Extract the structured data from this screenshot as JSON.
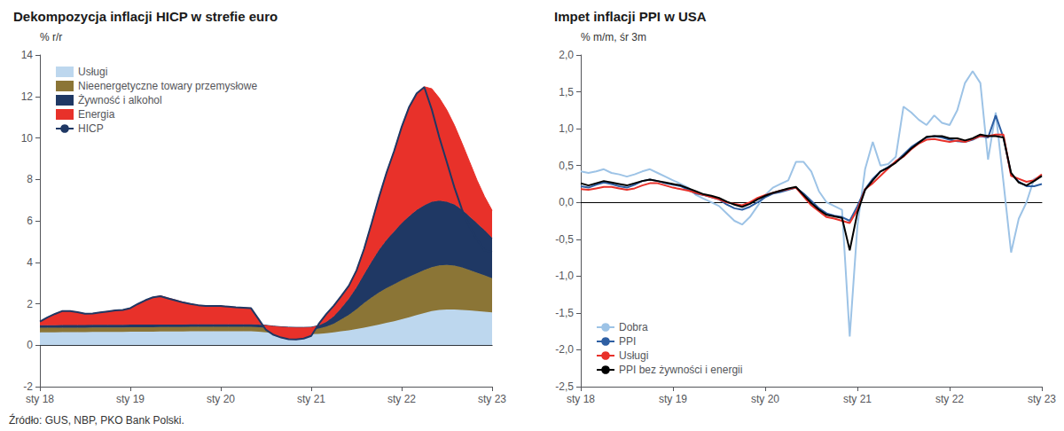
{
  "chart_data": [
    {
      "type": "area",
      "title": "Dekompozycja inflacji HICP w strefie euro",
      "ylabel": "% r/r",
      "categories": [
        "sty 18",
        null,
        null,
        null,
        null,
        null,
        null,
        null,
        null,
        null,
        null,
        null,
        "sty 19",
        null,
        null,
        null,
        null,
        null,
        null,
        null,
        null,
        null,
        null,
        null,
        "sty 20",
        null,
        null,
        null,
        null,
        null,
        null,
        null,
        null,
        null,
        null,
        null,
        "sty 21",
        null,
        null,
        null,
        null,
        null,
        null,
        null,
        null,
        null,
        null,
        null,
        "sty 22",
        null,
        null,
        null,
        null,
        null,
        null,
        null,
        null,
        null,
        null,
        null,
        "sty 23"
      ],
      "ylim": [
        -2,
        14
      ],
      "yticks": [
        -2,
        0,
        2,
        4,
        6,
        8,
        10,
        12,
        14
      ],
      "grid": false,
      "legend": "upper left",
      "stacked": true,
      "series": [
        {
          "name": "Usługi",
          "type": "area",
          "color": "#BDD7EE",
          "values": [
            0.62,
            0.62,
            0.62,
            0.63,
            0.63,
            0.63,
            0.63,
            0.64,
            0.64,
            0.64,
            0.64,
            0.64,
            0.65,
            0.65,
            0.65,
            0.65,
            0.66,
            0.66,
            0.66,
            0.66,
            0.67,
            0.67,
            0.67,
            0.67,
            0.67,
            0.67,
            0.67,
            0.67,
            0.67,
            0.65,
            0.62,
            0.58,
            0.55,
            0.53,
            0.52,
            0.52,
            0.53,
            0.55,
            0.58,
            0.62,
            0.67,
            0.72,
            0.78,
            0.85,
            0.92,
            1.0,
            1.08,
            1.16,
            1.25,
            1.35,
            1.45,
            1.55,
            1.65,
            1.7,
            1.72,
            1.72,
            1.7,
            1.68,
            1.65,
            1.62,
            1.58
          ]
        },
        {
          "name": "Nieenergetyczne towary przemysłowe",
          "type": "area",
          "color": "#8B7536",
          "values": [
            0.22,
            0.22,
            0.22,
            0.22,
            0.22,
            0.22,
            0.22,
            0.22,
            0.22,
            0.22,
            0.22,
            0.22,
            0.22,
            0.22,
            0.22,
            0.22,
            0.22,
            0.22,
            0.22,
            0.22,
            0.22,
            0.22,
            0.22,
            0.22,
            0.22,
            0.22,
            0.22,
            0.22,
            0.22,
            0.22,
            0.22,
            0.22,
            0.22,
            0.22,
            0.22,
            0.22,
            0.22,
            0.25,
            0.32,
            0.42,
            0.58,
            0.75,
            0.95,
            1.18,
            1.38,
            1.55,
            1.68,
            1.78,
            1.88,
            1.95,
            2.02,
            2.08,
            2.12,
            2.15,
            2.15,
            2.12,
            2.05,
            1.95,
            1.85,
            1.75,
            1.65
          ]
        },
        {
          "name": "Żywność i alkohol",
          "type": "area",
          "color": "#1F3864",
          "values": [
            0.12,
            0.12,
            0.12,
            0.12,
            0.12,
            0.12,
            0.12,
            0.12,
            0.12,
            0.12,
            0.12,
            0.12,
            0.12,
            0.12,
            0.12,
            0.12,
            0.12,
            0.12,
            0.12,
            0.12,
            0.12,
            0.12,
            0.12,
            0.12,
            0.12,
            0.12,
            0.12,
            0.12,
            0.12,
            0.12,
            0.12,
            0.12,
            0.12,
            0.12,
            0.12,
            0.12,
            0.12,
            0.15,
            0.22,
            0.35,
            0.55,
            0.78,
            1.05,
            1.38,
            1.72,
            2.05,
            2.32,
            2.55,
            2.75,
            2.92,
            3.05,
            3.12,
            3.15,
            3.12,
            3.05,
            2.95,
            2.78,
            2.58,
            2.38,
            2.18,
            1.95
          ]
        },
        {
          "name": "Energia",
          "type": "area",
          "color": "#E8312A",
          "values": [
            0.18,
            0.38,
            0.55,
            0.68,
            0.68,
            0.62,
            0.55,
            0.55,
            0.6,
            0.65,
            0.7,
            0.72,
            0.8,
            1.0,
            1.18,
            1.32,
            1.38,
            1.28,
            1.18,
            1.08,
            0.98,
            0.92,
            0.88,
            0.88,
            0.88,
            0.85,
            0.82,
            0.8,
            0.78,
            0.28,
            -0.22,
            -0.42,
            -0.52,
            -0.58,
            -0.58,
            -0.52,
            -0.42,
            0.08,
            0.38,
            0.52,
            0.58,
            0.62,
            0.82,
            1.22,
            1.85,
            2.55,
            3.25,
            3.88,
            4.65,
            5.28,
            5.62,
            5.72,
            5.45,
            4.95,
            4.42,
            3.82,
            3.22,
            2.65,
            2.08,
            1.62,
            1.32
          ]
        },
        {
          "name": "HICP",
          "type": "line",
          "color": "#1F3864",
          "values": [
            1.14,
            1.34,
            1.51,
            1.65,
            1.65,
            1.59,
            1.52,
            1.53,
            1.58,
            1.63,
            1.68,
            1.7,
            1.79,
            1.99,
            2.17,
            2.31,
            2.36,
            2.26,
            2.16,
            2.06,
            1.99,
            1.93,
            1.89,
            1.89,
            1.89,
            1.86,
            1.83,
            1.81,
            1.79,
            1.27,
            0.74,
            0.5,
            0.37,
            0.29,
            0.28,
            0.32,
            0.45,
            1.03,
            1.5,
            1.91,
            2.38,
            2.87,
            3.6,
            4.63,
            5.87,
            7.15,
            8.33,
            9.37,
            10.53,
            11.5,
            12.15,
            12.45,
            11.37,
            10.02,
            8.82,
            7.61,
            6.55,
            5.73,
            5.1,
            4.57,
            4.5
          ]
        }
      ]
    },
    {
      "type": "line",
      "title": "Impet inflacji PPI w USA",
      "ylabel": "% m/m, śr 3m",
      "categories": [
        "sty 18",
        null,
        null,
        null,
        null,
        null,
        null,
        null,
        null,
        null,
        null,
        null,
        "sty 19",
        null,
        null,
        null,
        null,
        null,
        null,
        null,
        null,
        null,
        null,
        null,
        "sty 20",
        null,
        null,
        null,
        null,
        null,
        null,
        null,
        null,
        null,
        null,
        null,
        "sty 21",
        null,
        null,
        null,
        null,
        null,
        null,
        null,
        null,
        null,
        null,
        null,
        "sty 22",
        null,
        null,
        null,
        null,
        null,
        null,
        null,
        null,
        null,
        null,
        null,
        "sty 23"
      ],
      "ylim": [
        -2.5,
        2.0
      ],
      "yticks": [
        {
          "value": -2.5,
          "label": "-2,5"
        },
        {
          "value": -2.0,
          "label": "-2,0"
        },
        {
          "value": -1.5,
          "label": "-1,5"
        },
        {
          "value": -1.0,
          "label": "-1,0"
        },
        {
          "value": -0.5,
          "label": "-0,5"
        },
        {
          "value": 0.0,
          "label": "0,0"
        },
        {
          "value": 0.5,
          "label": "0,5"
        },
        {
          "value": 1.0,
          "label": "1,0"
        },
        {
          "value": 1.5,
          "label": "1,5"
        },
        {
          "value": 2.0,
          "label": "2,0"
        }
      ],
      "grid": false,
      "legend": "lower left",
      "series": [
        {
          "name": "Dobra",
          "color": "#9DC3E6",
          "values": [
            0.42,
            0.4,
            0.42,
            0.45,
            0.4,
            0.38,
            0.35,
            0.38,
            0.42,
            0.45,
            0.4,
            0.35,
            0.3,
            0.25,
            0.2,
            0.1,
            0.05,
            0.0,
            -0.05,
            -0.15,
            -0.25,
            -0.3,
            -0.2,
            -0.05,
            0.1,
            0.2,
            0.25,
            0.3,
            0.55,
            0.55,
            0.42,
            0.15,
            0.0,
            -0.05,
            -0.1,
            -1.82,
            -0.32,
            0.45,
            0.82,
            0.5,
            0.52,
            0.62,
            1.3,
            1.22,
            1.12,
            1.05,
            1.18,
            1.08,
            1.05,
            1.25,
            1.62,
            1.78,
            1.62,
            0.58,
            1.22,
            0.28,
            -0.68,
            -0.22,
            0.0,
            0.32,
            0.35
          ]
        },
        {
          "name": "PPI",
          "color": "#2E5FA3",
          "values": [
            0.22,
            0.2,
            0.24,
            0.27,
            0.25,
            0.22,
            0.2,
            0.24,
            0.29,
            0.31,
            0.29,
            0.26,
            0.24,
            0.22,
            0.17,
            0.12,
            0.1,
            0.07,
            0.04,
            -0.03,
            -0.08,
            -0.1,
            -0.06,
            0.0,
            0.07,
            0.12,
            0.14,
            0.17,
            0.2,
            0.12,
            0.02,
            -0.08,
            -0.15,
            -0.18,
            -0.2,
            -0.25,
            -0.05,
            0.18,
            0.32,
            0.42,
            0.48,
            0.55,
            0.65,
            0.75,
            0.82,
            0.88,
            0.9,
            0.88,
            0.85,
            0.83,
            0.82,
            0.85,
            0.9,
            0.88,
            1.18,
            0.88,
            0.38,
            0.28,
            0.22,
            0.22,
            0.25
          ]
        },
        {
          "name": "Usługi",
          "color": "#E8312A",
          "values": [
            0.18,
            0.17,
            0.19,
            0.21,
            0.21,
            0.19,
            0.17,
            0.19,
            0.23,
            0.26,
            0.26,
            0.23,
            0.2,
            0.18,
            0.16,
            0.13,
            0.1,
            0.07,
            0.04,
            0.0,
            -0.02,
            -0.04,
            0.0,
            0.06,
            0.1,
            0.13,
            0.16,
            0.18,
            0.2,
            0.08,
            -0.04,
            -0.12,
            -0.2,
            -0.22,
            -0.25,
            -0.28,
            -0.1,
            0.18,
            0.26,
            0.36,
            0.46,
            0.56,
            0.62,
            0.72,
            0.8,
            0.85,
            0.86,
            0.84,
            0.82,
            0.84,
            0.82,
            0.86,
            0.9,
            0.9,
            0.92,
            0.92,
            0.36,
            0.32,
            0.28,
            0.3,
            0.38
          ]
        },
        {
          "name": "PPI bez żywności i energii",
          "color": "#000000",
          "values": [
            0.26,
            0.23,
            0.26,
            0.29,
            0.27,
            0.25,
            0.23,
            0.26,
            0.29,
            0.31,
            0.29,
            0.27,
            0.25,
            0.23,
            0.19,
            0.15,
            0.11,
            0.09,
            0.06,
            0.01,
            -0.03,
            -0.06,
            -0.02,
            0.04,
            0.09,
            0.13,
            0.16,
            0.19,
            0.21,
            0.1,
            -0.01,
            -0.1,
            -0.17,
            -0.19,
            -0.21,
            -0.65,
            -0.14,
            0.17,
            0.3,
            0.42,
            0.47,
            0.54,
            0.63,
            0.73,
            0.81,
            0.89,
            0.9,
            0.9,
            0.87,
            0.87,
            0.84,
            0.87,
            0.92,
            0.9,
            0.9,
            0.88,
            0.4,
            0.27,
            0.23,
            0.29,
            0.36
          ]
        }
      ]
    }
  ],
  "annotations": [
    "Źródło: GUS, NBP, PKO Bank Polski."
  ]
}
